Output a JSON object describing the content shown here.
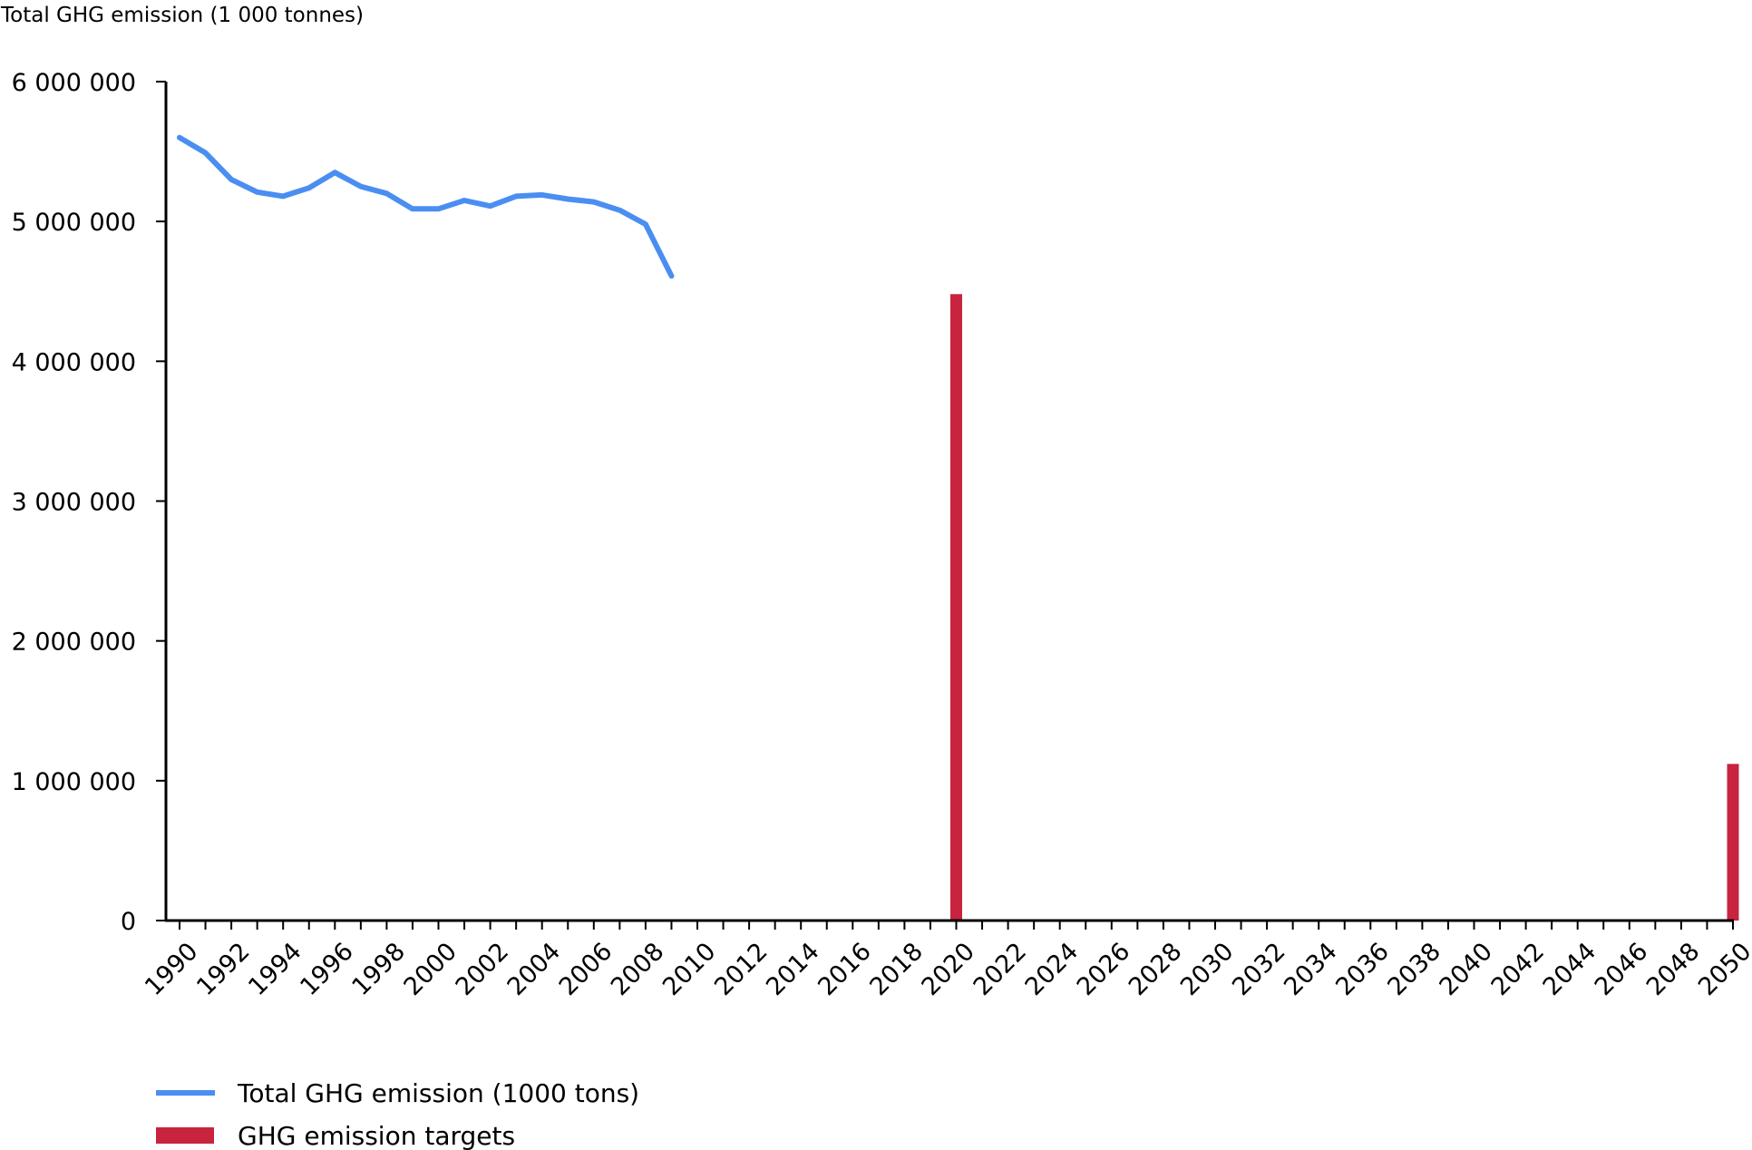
{
  "chart_data": {
    "type": "line",
    "title": "",
    "ylabel": "Total GHG emission (1 000 tonnes)",
    "xlabel": "",
    "ylim": [
      0,
      6000000
    ],
    "y_ticks": [
      0,
      1000000,
      2000000,
      3000000,
      4000000,
      5000000,
      6000000
    ],
    "y_tick_labels": [
      "0",
      "1 000 000",
      "2 000 000",
      "3 000 000",
      "4 000 000",
      "5 000 000",
      "6 000 000"
    ],
    "x_range": [
      1990,
      2050
    ],
    "x_tick_labels": [
      "1990",
      "1992",
      "1994",
      "1996",
      "1998",
      "2000",
      "2002",
      "2004",
      "2006",
      "2008",
      "2010",
      "2012",
      "2014",
      "2016",
      "2018",
      "2020",
      "2022",
      "2024",
      "2026",
      "2028",
      "2030",
      "2032",
      "2034",
      "2036",
      "2038",
      "2040",
      "2042",
      "2044",
      "2046",
      "2048",
      "2050"
    ],
    "grid": false,
    "legend_position": "bottom-left",
    "series": [
      {
        "name": "Total GHG emission (1000 tons)",
        "kind": "line",
        "color": "#4a8ef2",
        "x": [
          1990,
          1991,
          1992,
          1993,
          1994,
          1995,
          1996,
          1997,
          1998,
          1999,
          2000,
          2001,
          2002,
          2003,
          2004,
          2005,
          2006,
          2007,
          2008,
          2009
        ],
        "values": [
          5600000,
          5490000,
          5300000,
          5210000,
          5180000,
          5240000,
          5350000,
          5250000,
          5200000,
          5090000,
          5090000,
          5150000,
          5110000,
          5180000,
          5190000,
          5160000,
          5140000,
          5080000,
          4980000,
          4610000
        ]
      },
      {
        "name": "GHG emission targets",
        "kind": "bar",
        "color": "#c8233f",
        "x": [
          2020,
          2050
        ],
        "values": [
          4480000,
          1120000
        ]
      }
    ]
  }
}
